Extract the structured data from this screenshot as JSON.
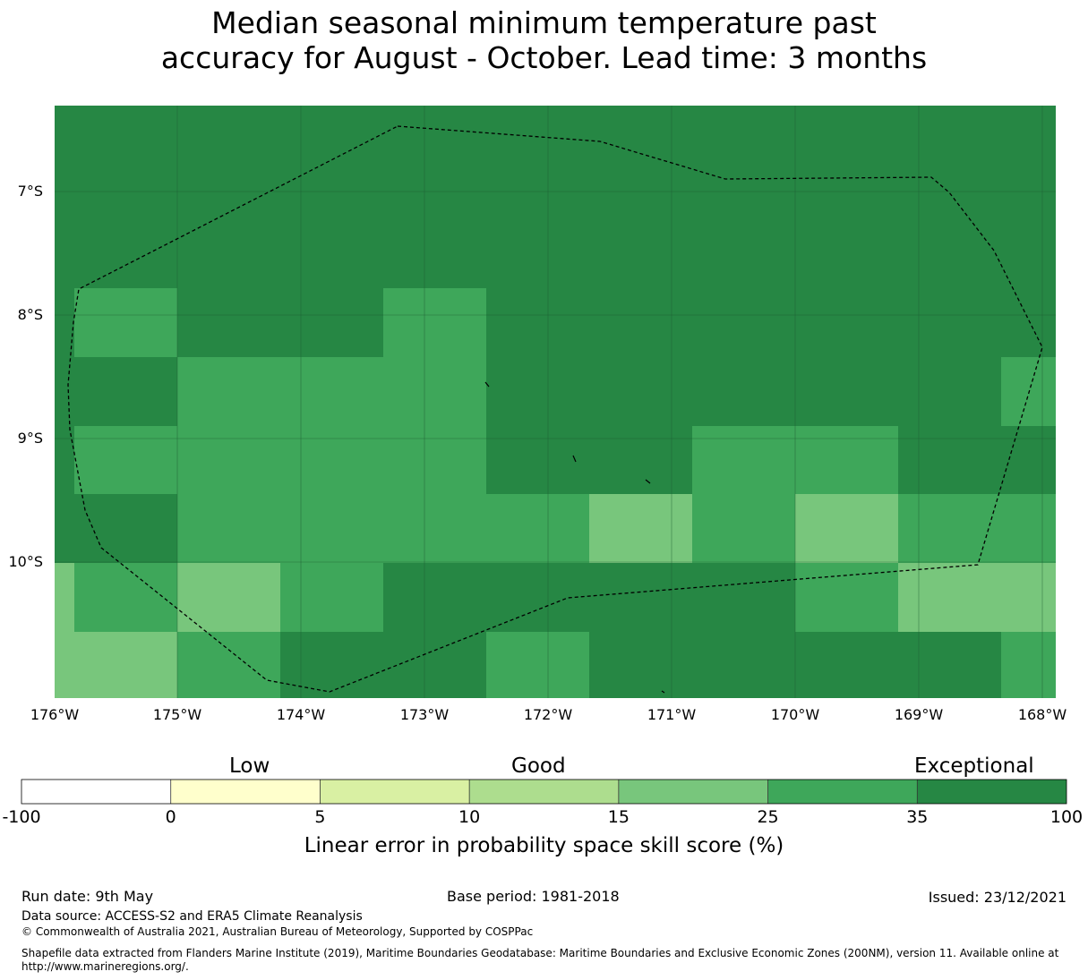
{
  "title": {
    "line1": "Median seasonal minimum temperature past",
    "line2": "accuracy for August - October. Lead time: 3 months"
  },
  "map": {
    "lat_labels": [
      "7°S",
      "8°S",
      "9°S",
      "10°S"
    ],
    "lon_labels": [
      "176°W",
      "175°W",
      "174°W",
      "173°W",
      "172°W",
      "171°W",
      "170°W",
      "169°W",
      "168°W"
    ],
    "lon_range": [
      -176,
      -167.9
    ],
    "lat_range": [
      -11.1,
      -6.3
    ],
    "cell_colors": {
      "35-100": "#268744",
      "25-35": "#3ea75a",
      "15-25": "#78c67c"
    },
    "boundary_style": "black dashed outline (EEZ)",
    "grid": true
  },
  "colorbar": {
    "category_labels": {
      "low": "Low",
      "good": "Good",
      "exceptional": "Exceptional"
    },
    "ticks": [
      "-100",
      "0",
      "5",
      "10",
      "15",
      "25",
      "35",
      "100"
    ],
    "bins": [
      {
        "from": -100,
        "to": 0,
        "color": "#ffffff"
      },
      {
        "from": 0,
        "to": 5,
        "color": "#ffffcc"
      },
      {
        "from": 5,
        "to": 10,
        "color": "#d9f0a3"
      },
      {
        "from": 10,
        "to": 15,
        "color": "#addd8e"
      },
      {
        "from": 15,
        "to": 25,
        "color": "#78c67c"
      },
      {
        "from": 25,
        "to": 35,
        "color": "#3ea75a"
      },
      {
        "from": 35,
        "to": 100,
        "color": "#268744"
      }
    ],
    "label": "Linear error in probability space skill score (%)"
  },
  "footer": {
    "run_date": "Run date: 9th May",
    "base_period": "Base period: 1981-2018",
    "issued": "Issued: 23/12/2021",
    "data_source": "Data source: ACCESS-S2 and ERA5 Climate Reanalysis",
    "copyright": "© Commonwealth of Australia 2021, Australian Bureau of Meteorology, Supported by COSPPac",
    "shapefile_line1": "Shapefile data extracted from Flanders Marine Institute (2019), Maritime Boundaries Geodatabase: Maritime Boundaries and Exclusive Economic Zones (200NM), version 11. Available online at",
    "shapefile_line2": "http://www.marineregions.org/."
  }
}
